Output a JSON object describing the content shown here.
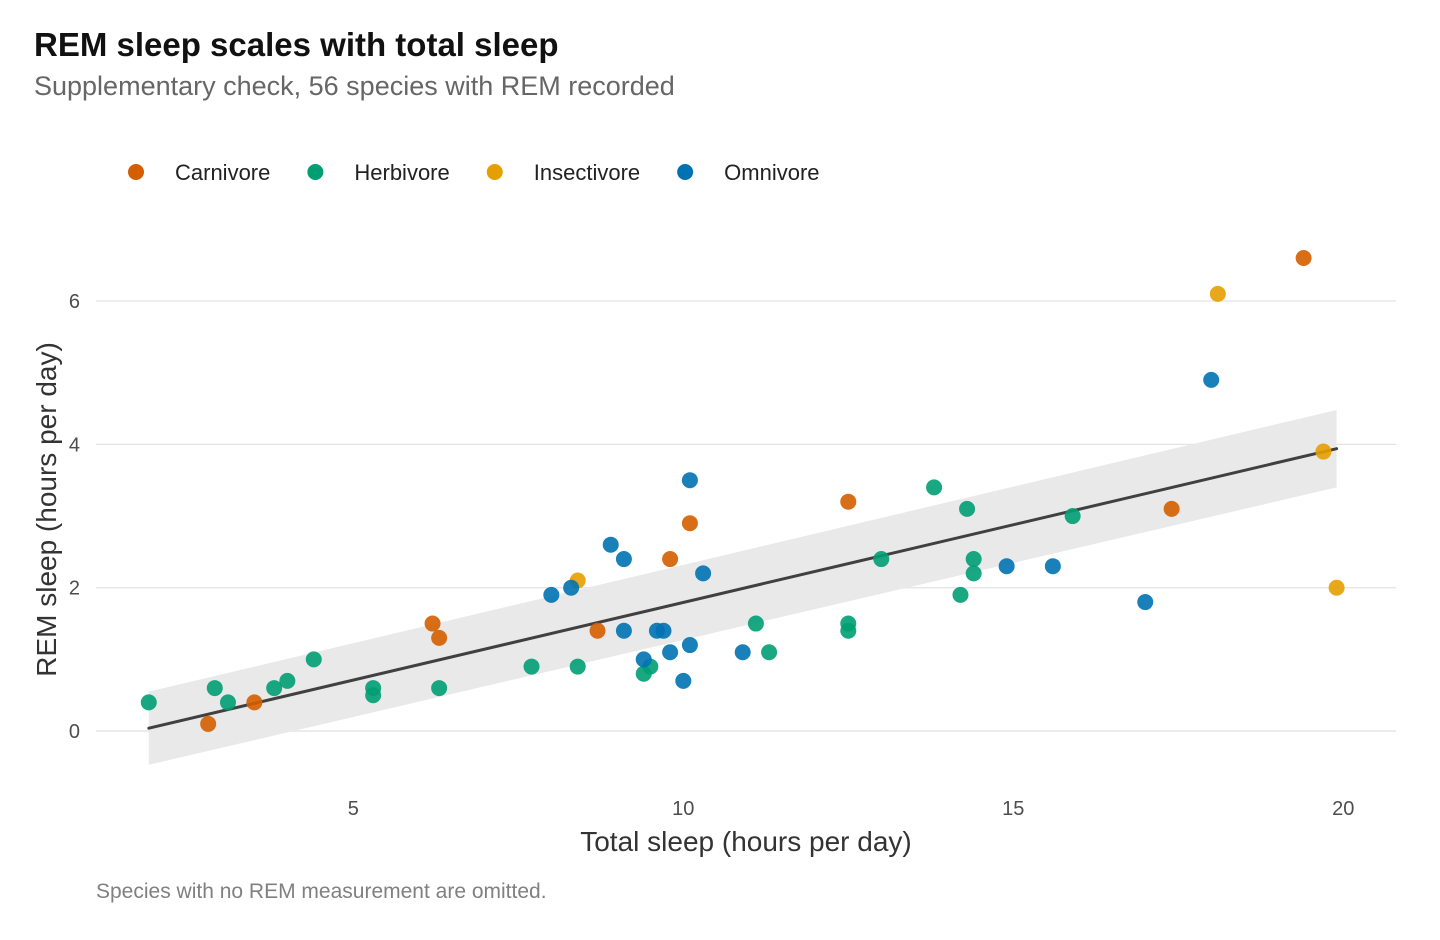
{
  "chart_data": {
    "type": "scatter",
    "title": "REM sleep scales with total sleep",
    "subtitle": "Supplementary check, 56 species with REM recorded",
    "caption": "Species with no REM measurement are omitted.",
    "xlabel": "Total sleep (hours per day)",
    "ylabel": "REM sleep (hours per day)",
    "xlim": [
      1.1,
      20.8
    ],
    "ylim": [
      -0.85,
      7.2
    ],
    "xticks": [
      5,
      10,
      15,
      20
    ],
    "yticks": [
      0,
      2,
      4,
      6
    ],
    "grid": "horizontal",
    "legend_position": "top-left",
    "series": [
      {
        "name": "Carnivore",
        "color": "#D55E00",
        "points": [
          [
            2.8,
            0.1
          ],
          [
            3.5,
            0.4
          ],
          [
            6.3,
            1.3
          ],
          [
            6.2,
            1.5
          ],
          [
            8.7,
            1.4
          ],
          [
            9.8,
            2.4
          ],
          [
            10.1,
            2.9
          ],
          [
            12.5,
            3.2
          ],
          [
            17.4,
            3.1
          ],
          [
            19.4,
            6.6
          ]
        ]
      },
      {
        "name": "Herbivore",
        "color": "#009E73",
        "points": [
          [
            1.9,
            0.4
          ],
          [
            2.9,
            0.6
          ],
          [
            3.1,
            0.4
          ],
          [
            3.8,
            0.6
          ],
          [
            4.0,
            0.7
          ],
          [
            4.4,
            1.0
          ],
          [
            5.3,
            0.6
          ],
          [
            5.3,
            0.5
          ],
          [
            6.3,
            0.6
          ],
          [
            7.7,
            0.9
          ],
          [
            8.4,
            0.9
          ],
          [
            9.4,
            0.8
          ],
          [
            9.5,
            0.9
          ],
          [
            11.1,
            1.5
          ],
          [
            11.3,
            1.1
          ],
          [
            12.5,
            1.5
          ],
          [
            12.5,
            1.4
          ],
          [
            13.0,
            2.4
          ],
          [
            13.8,
            3.4
          ],
          [
            14.2,
            1.9
          ],
          [
            14.3,
            3.1
          ],
          [
            14.4,
            2.4
          ],
          [
            14.4,
            2.2
          ],
          [
            15.9,
            3.0
          ]
        ]
      },
      {
        "name": "Insectivore",
        "color": "#E69F00",
        "points": [
          [
            8.4,
            2.1
          ],
          [
            18.1,
            6.1
          ],
          [
            19.7,
            3.9
          ],
          [
            19.9,
            2.0
          ]
        ]
      },
      {
        "name": "Omnivore",
        "color": "#0072B2",
        "points": [
          [
            8.0,
            1.9
          ],
          [
            8.3,
            2.0
          ],
          [
            8.9,
            2.6
          ],
          [
            9.1,
            2.4
          ],
          [
            9.1,
            1.4
          ],
          [
            9.4,
            1.0
          ],
          [
            9.6,
            1.4
          ],
          [
            9.7,
            1.4
          ],
          [
            9.8,
            1.1
          ],
          [
            10.0,
            0.7
          ],
          [
            10.1,
            1.2
          ],
          [
            10.1,
            3.5
          ],
          [
            10.3,
            2.2
          ],
          [
            10.9,
            1.1
          ],
          [
            14.9,
            2.3
          ],
          [
            15.6,
            2.3
          ],
          [
            17.0,
            1.8
          ],
          [
            18.0,
            4.9
          ]
        ]
      }
    ],
    "trend": {
      "method": "lm",
      "color": "#404040",
      "band_color": "#e9e9e9",
      "points": [
        [
          1.9,
          0.04
        ],
        [
          19.9,
          3.94
        ]
      ],
      "band_upper": [
        [
          1.9,
          0.55
        ],
        [
          19.9,
          4.48
        ]
      ],
      "band_lower": [
        [
          1.9,
          -0.47
        ],
        [
          19.9,
          3.4
        ]
      ]
    }
  }
}
